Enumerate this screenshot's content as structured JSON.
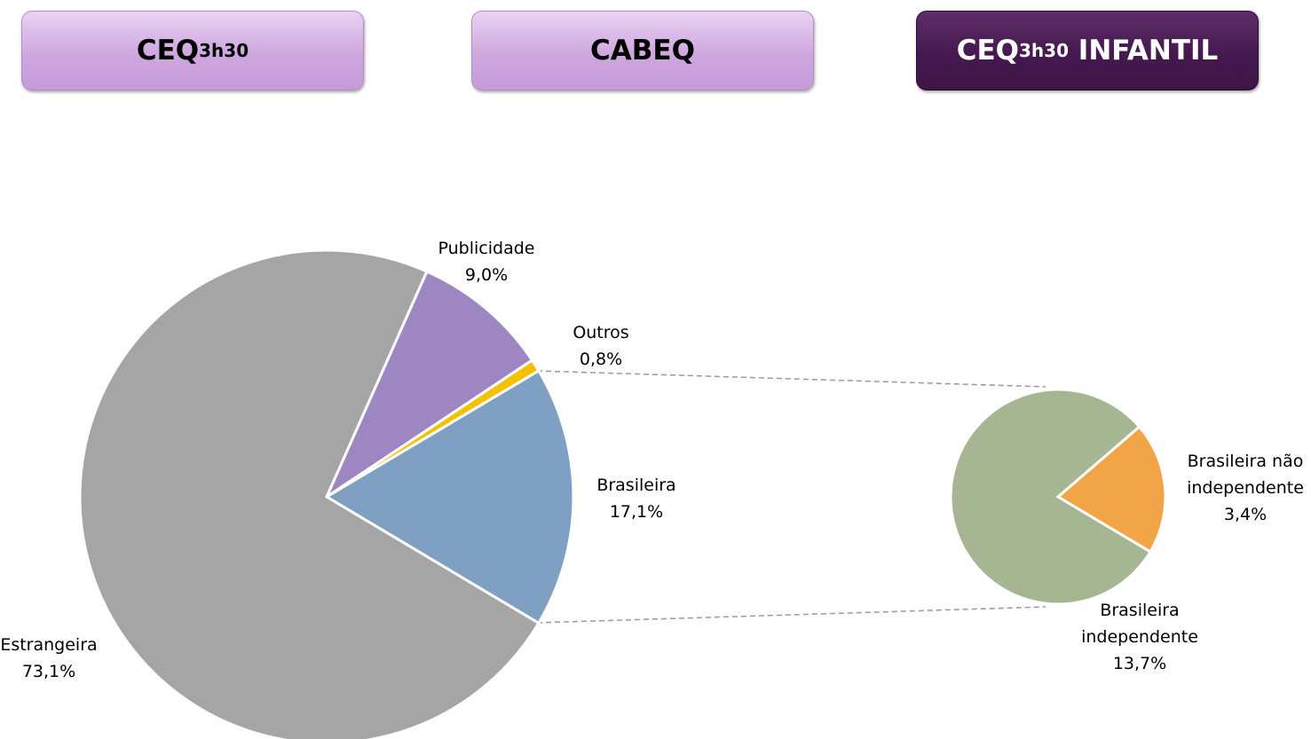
{
  "buttons": [
    {
      "text": "CEQ",
      "sup": "3h30"
    },
    {
      "text": "CABEQ"
    },
    {
      "text": "CEQ",
      "sup": "3h30",
      "suffix": "INFANTIL"
    }
  ],
  "chart_data": {
    "type": "pie-of-pie",
    "categories": [
      "Brasileira",
      "Outros",
      "Publicidade",
      "Estrangeira"
    ],
    "values": [
      17.1,
      0.8,
      9.0,
      73.1
    ],
    "value_labels": [
      "17,1%",
      "0,8%",
      "9,0%",
      "73,1%"
    ],
    "colors": [
      "#7f9fc3",
      "#f5c000",
      "#9e86c2",
      "#a5a5a5"
    ],
    "secondary": {
      "categories": [
        "Brasileira não independente",
        "Brasileira independente"
      ],
      "values": [
        3.4,
        13.7
      ],
      "value_labels": [
        "3,4%",
        "13,7%"
      ],
      "colors": [
        "#f2a546",
        "#a6b592"
      ]
    }
  }
}
